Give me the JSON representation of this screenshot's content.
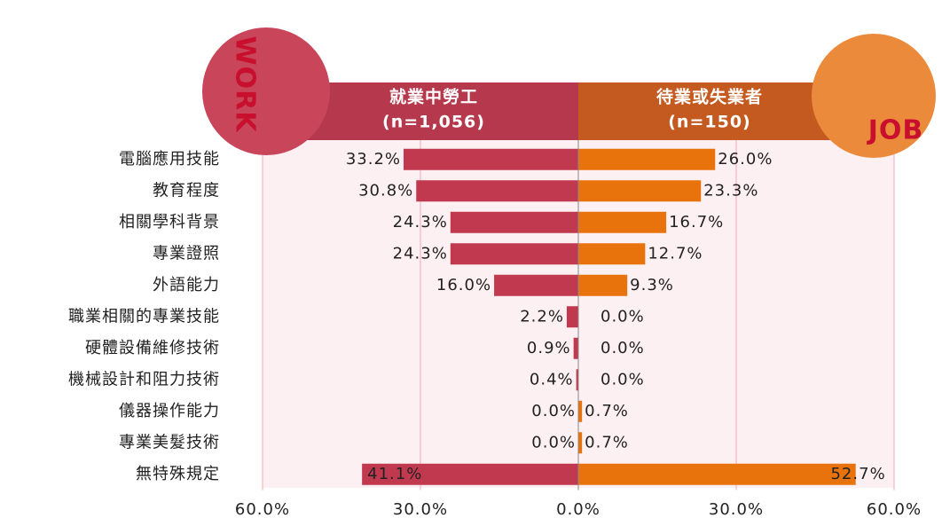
{
  "chart_data": {
    "type": "butterfly",
    "icons": [
      "WORK",
      "JOB"
    ],
    "categories": [
      "電腦應用技能",
      "教育程度",
      "相關學科背景",
      "專業證照",
      "外語能力",
      "職業相關的專業技能",
      "硬體設備維修技術",
      "機械設計和阻力技術",
      "儀器操作能力",
      "專業美髮技術",
      "無特殊規定"
    ],
    "series": [
      {
        "name": "就業中勞工",
        "n_label": "(n=1,056)",
        "color": "#c0394f",
        "header_color": "#b5384c",
        "values": [
          33.2,
          30.8,
          24.3,
          24.3,
          16.0,
          2.2,
          0.9,
          0.4,
          0.0,
          0.0,
          41.1
        ],
        "value_labels": [
          "33.2%",
          "30.8%",
          "24.3%",
          "24.3%",
          "16.0%",
          "2.2%",
          "0.9%",
          "0.4%",
          "0.0%",
          "0.0%",
          "41.1%"
        ]
      },
      {
        "name": "待業或失業者",
        "n_label": "(n=150)",
        "color": "#e8720c",
        "header_color": "#c45a1f",
        "values": [
          26.0,
          23.3,
          16.7,
          12.7,
          9.3,
          0.0,
          0.0,
          0.0,
          0.7,
          0.7,
          52.7
        ],
        "value_labels": [
          "26.0%",
          "23.3%",
          "16.7%",
          "12.7%",
          "9.3%",
          "0.0%",
          "0.0%",
          "0.0%",
          "0.7%",
          "0.7%",
          "52.7%"
        ]
      }
    ],
    "xlim": [
      -60,
      60
    ],
    "xticks": [
      {
        "value": -60,
        "label": "60.0%"
      },
      {
        "value": -30,
        "label": "30.0%"
      },
      {
        "value": 0,
        "label": "0.0%"
      },
      {
        "value": 30,
        "label": "30.0%"
      },
      {
        "value": 60,
        "label": "60.0%"
      }
    ],
    "grid": true
  }
}
